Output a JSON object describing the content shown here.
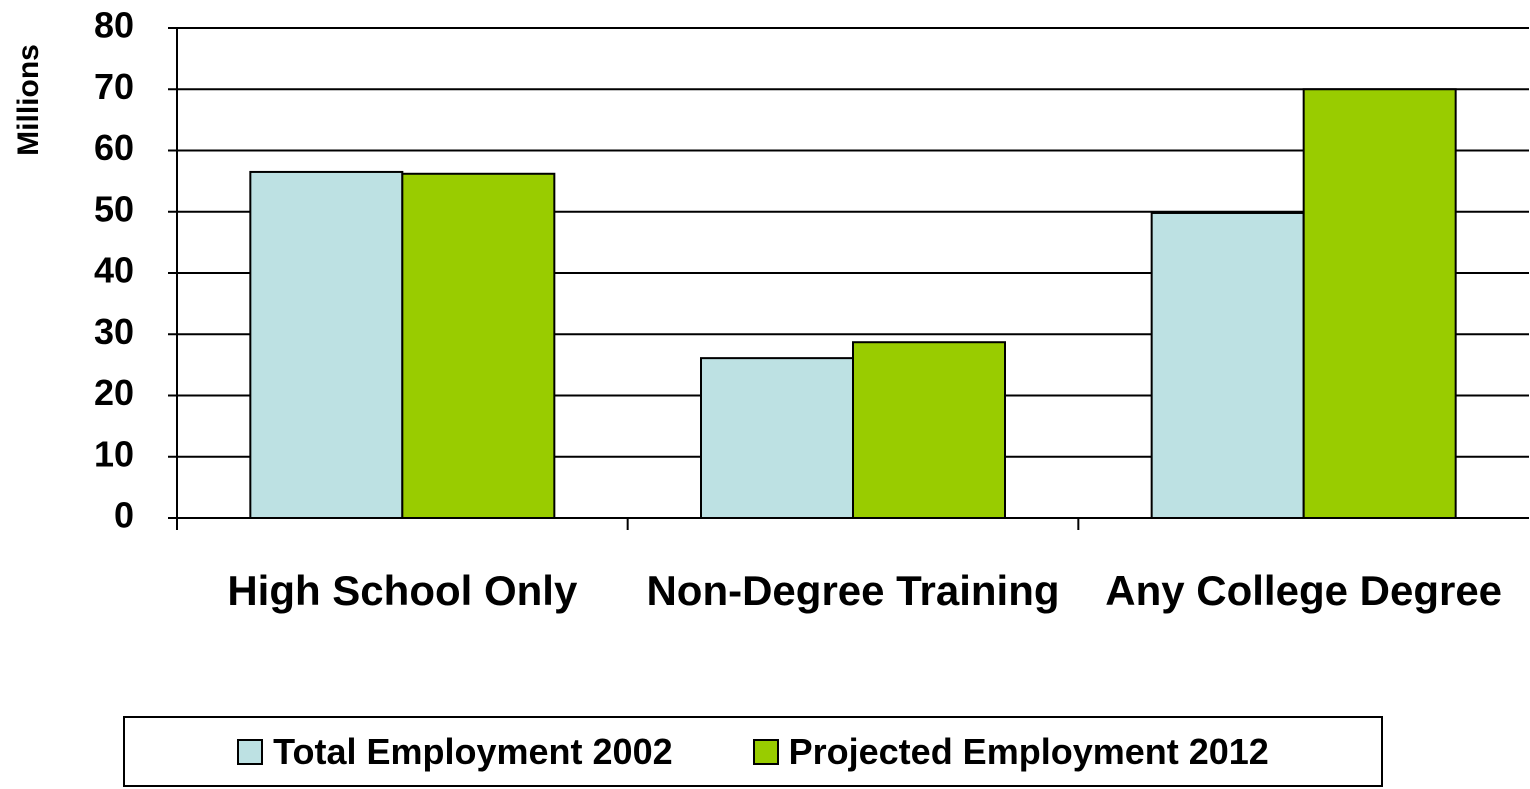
{
  "chart_data": {
    "type": "bar",
    "y_label": "Millions",
    "categories": [
      "High School Only",
      "Non-Degree Training",
      "Any College Degree"
    ],
    "series": [
      {
        "name": "Total Employment 2002",
        "color": "#bde1e3",
        "values": [
          56.5,
          26.1,
          49.8
        ]
      },
      {
        "name": "Projected Employment 2012",
        "color": "#99cc00",
        "values": [
          56.2,
          28.7,
          70
        ]
      }
    ],
    "ylim": [
      0,
      80
    ],
    "yticks": [
      0,
      10,
      20,
      30,
      40,
      50,
      60,
      70,
      80
    ],
    "grid": true
  }
}
